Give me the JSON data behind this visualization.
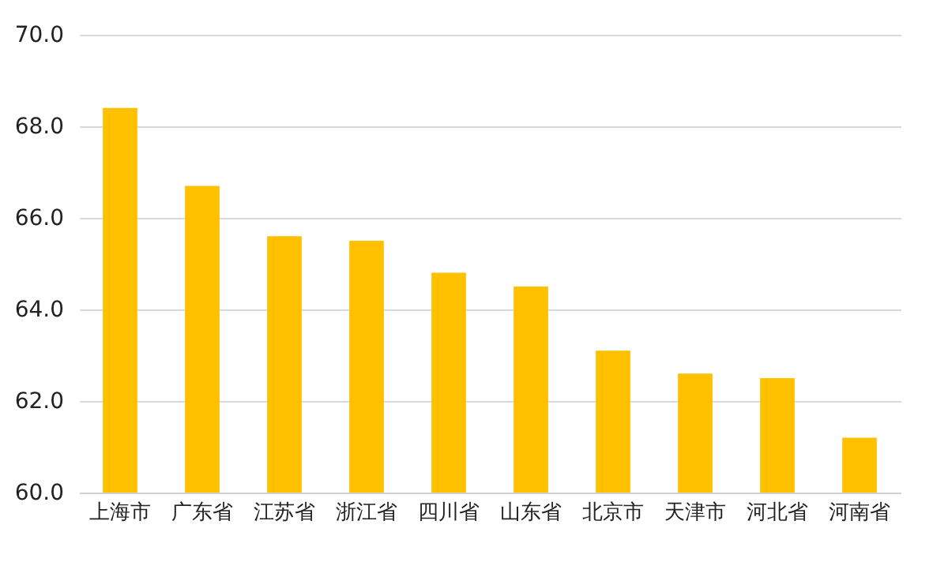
{
  "chart_data": {
    "type": "bar",
    "categories": [
      "上海市",
      "广东省",
      "江苏省",
      "浙江省",
      "四川省",
      "山东省",
      "北京市",
      "天津市",
      "河北省",
      "河南省"
    ],
    "values": [
      68.4,
      66.7,
      65.6,
      65.5,
      64.8,
      64.5,
      63.1,
      62.6,
      62.5,
      61.2
    ],
    "color": "#ffc000",
    "ylim": [
      60,
      70
    ],
    "yticks": [
      {
        "value": 60,
        "label": "60.0"
      },
      {
        "value": 62,
        "label": "62.0"
      },
      {
        "value": 64,
        "label": "64.0"
      },
      {
        "value": 66,
        "label": "66.0"
      },
      {
        "value": 68,
        "label": "68.0"
      },
      {
        "value": 70,
        "label": "70.0"
      }
    ],
    "grid": "y"
  }
}
